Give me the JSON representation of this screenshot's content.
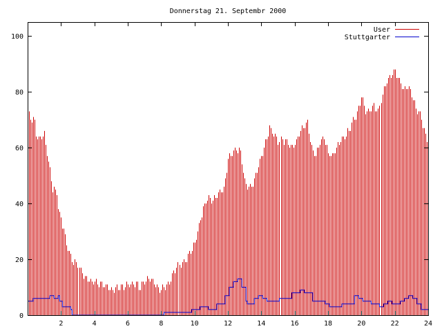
{
  "chart_data": {
    "type": "bar",
    "title": "Donnerstag 21. Septembr 2000",
    "xlabel": "",
    "ylabel": "",
    "xlim": [
      0,
      24
    ],
    "ylim": [
      0,
      105
    ],
    "xticks": [
      2,
      4,
      6,
      8,
      10,
      12,
      14,
      16,
      18,
      20,
      22,
      24
    ],
    "yticks": [
      0,
      20,
      40,
      60,
      80,
      100
    ],
    "legend_position": "top-right",
    "grid": false,
    "x_step": 0.08333,
    "series": [
      {
        "name": "User",
        "kind": "bar",
        "color": "#cc0000",
        "anchors": [
          [
            0,
            75
          ],
          [
            0.1,
            71
          ],
          [
            0.25,
            70
          ],
          [
            0.4,
            70
          ],
          [
            0.5,
            65
          ],
          [
            0.7,
            63
          ],
          [
            0.85,
            64
          ],
          [
            1.0,
            65
          ],
          [
            1.1,
            60
          ],
          [
            1.25,
            55
          ],
          [
            1.4,
            50
          ],
          [
            1.5,
            45
          ],
          [
            1.75,
            44
          ],
          [
            1.85,
            37
          ],
          [
            2.0,
            35
          ],
          [
            2.25,
            28
          ],
          [
            2.5,
            22
          ],
          [
            2.75,
            19
          ],
          [
            3.0,
            18
          ],
          [
            3.25,
            15
          ],
          [
            3.5,
            13
          ],
          [
            3.75,
            12
          ],
          [
            4.0,
            12
          ],
          [
            4.5,
            11
          ],
          [
            4.75,
            10
          ],
          [
            5.0,
            9
          ],
          [
            5.5,
            10
          ],
          [
            6.0,
            11
          ],
          [
            6.5,
            11
          ],
          [
            6.75,
            10
          ],
          [
            7.0,
            12
          ],
          [
            7.25,
            13
          ],
          [
            7.5,
            12
          ],
          [
            7.75,
            10
          ],
          [
            8.0,
            9
          ],
          [
            8.25,
            10
          ],
          [
            8.5,
            12
          ],
          [
            8.75,
            15
          ],
          [
            9.0,
            18
          ],
          [
            9.25,
            19
          ],
          [
            9.5,
            20
          ],
          [
            9.75,
            23
          ],
          [
            10.0,
            26
          ],
          [
            10.25,
            32
          ],
          [
            10.5,
            38
          ],
          [
            10.75,
            42
          ],
          [
            11.0,
            41
          ],
          [
            11.25,
            42
          ],
          [
            11.5,
            44
          ],
          [
            11.75,
            45
          ],
          [
            12.0,
            56
          ],
          [
            12.25,
            58
          ],
          [
            12.5,
            60
          ],
          [
            12.75,
            58
          ],
          [
            13.0,
            48
          ],
          [
            13.25,
            46
          ],
          [
            13.5,
            47
          ],
          [
            13.75,
            52
          ],
          [
            14.0,
            57
          ],
          [
            14.25,
            62
          ],
          [
            14.5,
            67
          ],
          [
            14.75,
            65
          ],
          [
            15.0,
            62
          ],
          [
            15.25,
            63
          ],
          [
            15.5,
            62
          ],
          [
            15.75,
            60
          ],
          [
            16.0,
            61
          ],
          [
            16.25,
            65
          ],
          [
            16.5,
            68
          ],
          [
            16.75,
            69
          ],
          [
            17.0,
            60
          ],
          [
            17.25,
            57
          ],
          [
            17.5,
            62
          ],
          [
            17.75,
            64
          ],
          [
            18.0,
            58
          ],
          [
            18.25,
            57
          ],
          [
            18.5,
            60
          ],
          [
            18.75,
            63
          ],
          [
            19.0,
            64
          ],
          [
            19.25,
            66
          ],
          [
            19.5,
            70
          ],
          [
            19.75,
            72
          ],
          [
            20.0,
            78
          ],
          [
            20.25,
            73
          ],
          [
            20.5,
            73
          ],
          [
            20.75,
            75
          ],
          [
            21.0,
            73
          ],
          [
            21.25,
            79
          ],
          [
            21.5,
            84
          ],
          [
            21.75,
            86
          ],
          [
            22.0,
            87
          ],
          [
            22.25,
            84
          ],
          [
            22.5,
            81
          ],
          [
            22.75,
            82
          ],
          [
            23.0,
            79
          ],
          [
            23.25,
            74
          ],
          [
            23.5,
            72
          ],
          [
            23.75,
            66
          ],
          [
            24.0,
            62
          ]
        ]
      },
      {
        "name": "Stuttgarter",
        "kind": "step",
        "color": "#0000cc",
        "anchors": [
          [
            0,
            5
          ],
          [
            0.25,
            6
          ],
          [
            1.25,
            7
          ],
          [
            1.5,
            6
          ],
          [
            1.75,
            7
          ],
          [
            1.9,
            5
          ],
          [
            2.0,
            3
          ],
          [
            2.3,
            3
          ],
          [
            2.5,
            2
          ],
          [
            2.6,
            0
          ],
          [
            8.0,
            0
          ],
          [
            8.1,
            1
          ],
          [
            9.5,
            1
          ],
          [
            9.8,
            2
          ],
          [
            10.25,
            3
          ],
          [
            10.75,
            2
          ],
          [
            11.25,
            4
          ],
          [
            11.75,
            7
          ],
          [
            12.0,
            10
          ],
          [
            12.25,
            12
          ],
          [
            12.5,
            13
          ],
          [
            12.75,
            10
          ],
          [
            13.0,
            5
          ],
          [
            13.1,
            4
          ],
          [
            13.5,
            6
          ],
          [
            13.75,
            7
          ],
          [
            14.0,
            6
          ],
          [
            14.25,
            5
          ],
          [
            14.75,
            5
          ],
          [
            15.0,
            6
          ],
          [
            15.5,
            6
          ],
          [
            15.75,
            8
          ],
          [
            16.0,
            8
          ],
          [
            16.25,
            9
          ],
          [
            16.5,
            8
          ],
          [
            16.75,
            8
          ],
          [
            17.0,
            5
          ],
          [
            17.5,
            5
          ],
          [
            17.75,
            4
          ],
          [
            18.0,
            3
          ],
          [
            18.5,
            3
          ],
          [
            18.75,
            4
          ],
          [
            19.5,
            7
          ],
          [
            19.75,
            6
          ],
          [
            20.0,
            5
          ],
          [
            20.5,
            4
          ],
          [
            20.75,
            4
          ],
          [
            21.0,
            3
          ],
          [
            21.25,
            4
          ],
          [
            21.5,
            5
          ],
          [
            21.75,
            4
          ],
          [
            22.0,
            4
          ],
          [
            22.25,
            5
          ],
          [
            22.5,
            6
          ],
          [
            22.75,
            7
          ],
          [
            23.0,
            6
          ],
          [
            23.25,
            4
          ],
          [
            23.5,
            2
          ],
          [
            24.0,
            2
          ]
        ]
      }
    ]
  }
}
